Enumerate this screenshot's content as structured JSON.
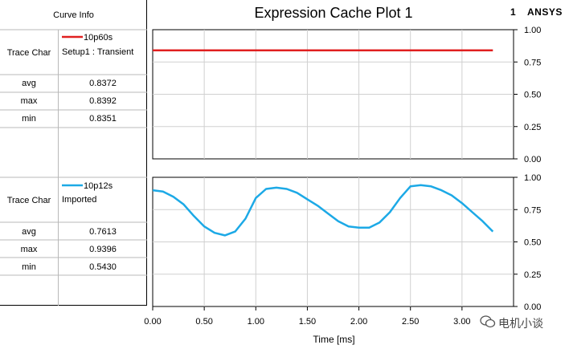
{
  "window": {
    "plot_title": "Expression Cache Plot 1",
    "plot_number": "1",
    "brand": "ANSYS",
    "watermark": "电机小谈"
  },
  "curve_info": {
    "header": "Curve Info",
    "blocks": [
      {
        "trace_label": "Trace Char",
        "trace_name": "10p60s",
        "trace_source": "Setup1 : Transient",
        "color": "#e02020",
        "stats": [
          {
            "label": "avg",
            "value": "0.8372"
          },
          {
            "label": "max",
            "value": "0.8392"
          },
          {
            "label": "min",
            "value": "0.8351"
          }
        ]
      },
      {
        "trace_label": "Trace Char",
        "trace_name": "10p12s",
        "trace_source": "Imported",
        "color": "#1ca9e6",
        "stats": [
          {
            "label": "avg",
            "value": "0.7613"
          },
          {
            "label": "max",
            "value": "0.9396"
          },
          {
            "label": "min",
            "value": "0.5430"
          }
        ]
      }
    ]
  },
  "chart_data": [
    {
      "type": "line",
      "title": "Expression Cache Plot 1",
      "xlabel": "",
      "ylabel": "",
      "xlim": [
        0,
        3.5
      ],
      "ylim": [
        0,
        1
      ],
      "yticks": [
        "0.00",
        "0.25",
        "0.50",
        "0.75",
        "1.00"
      ],
      "grid": true,
      "series": [
        {
          "name": "10p60s",
          "color": "#e02020",
          "x": [
            0.0,
            3.3
          ],
          "y": [
            0.84,
            0.84
          ]
        }
      ]
    },
    {
      "type": "line",
      "xlabel": "Time [ms]",
      "ylabel": "",
      "xlim": [
        0,
        3.5
      ],
      "ylim": [
        0,
        1
      ],
      "xticks": [
        "0.00",
        "0.50",
        "1.00",
        "1.50",
        "2.00",
        "2.50",
        "3.00"
      ],
      "yticks": [
        "0.00",
        "0.25",
        "0.50",
        "0.75",
        "1.00"
      ],
      "grid": true,
      "series": [
        {
          "name": "10p12s",
          "color": "#1ca9e6",
          "x": [
            0.0,
            0.1,
            0.2,
            0.3,
            0.4,
            0.5,
            0.6,
            0.7,
            0.8,
            0.9,
            1.0,
            1.1,
            1.2,
            1.3,
            1.4,
            1.5,
            1.6,
            1.7,
            1.8,
            1.9,
            2.0,
            2.1,
            2.2,
            2.3,
            2.4,
            2.5,
            2.6,
            2.7,
            2.8,
            2.9,
            3.0,
            3.1,
            3.2,
            3.3
          ],
          "y": [
            0.9,
            0.89,
            0.85,
            0.79,
            0.7,
            0.62,
            0.57,
            0.55,
            0.58,
            0.68,
            0.84,
            0.91,
            0.92,
            0.91,
            0.88,
            0.83,
            0.78,
            0.72,
            0.66,
            0.62,
            0.61,
            0.61,
            0.65,
            0.73,
            0.84,
            0.93,
            0.94,
            0.93,
            0.9,
            0.86,
            0.8,
            0.73,
            0.66,
            0.58
          ]
        }
      ]
    }
  ]
}
